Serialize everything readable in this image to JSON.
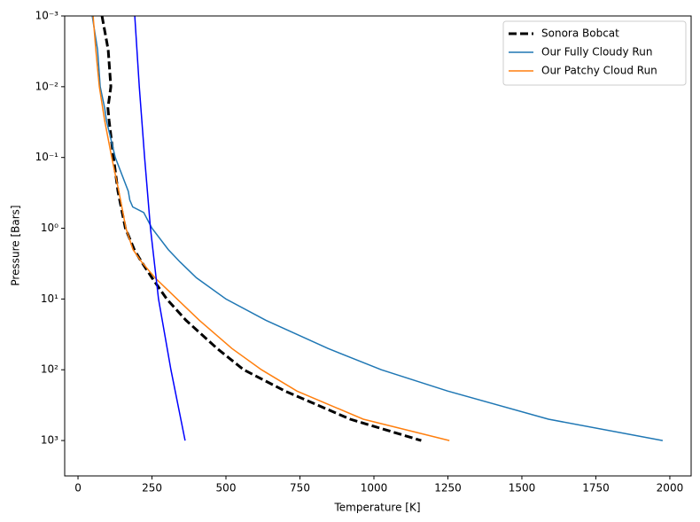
{
  "chart_data": {
    "type": "line",
    "x_label": "Temperature [K]",
    "y_label": "Pressure [Bars]",
    "xlim": [
      -45,
      2072
    ],
    "xticks": [
      0,
      250,
      500,
      750,
      1000,
      1250,
      1500,
      1750,
      2000
    ],
    "ylim": [
      3162,
      0.001
    ],
    "y_log": true,
    "yticks": [
      {
        "value": 0.001,
        "label": "10⁻³"
      },
      {
        "value": 0.01,
        "label": "10⁻²"
      },
      {
        "value": 0.1,
        "label": "10⁻¹"
      },
      {
        "value": 1,
        "label": "10⁰"
      },
      {
        "value": 10,
        "label": "10¹"
      },
      {
        "value": 100,
        "label": "10²"
      },
      {
        "value": 1000,
        "label": "10³"
      }
    ],
    "legend": "upper right",
    "series": [
      {
        "name": "Sonora Bobcat",
        "color": "#000000",
        "dashed": true,
        "width": 3,
        "x": [
          81,
          102,
          111,
          101,
          105,
          120,
          135,
          160,
          190,
          215,
          250,
          300,
          365,
          470,
          560,
          700,
          920,
          1160
        ],
        "values": [
          0.001,
          0.003,
          0.01,
          0.02,
          0.03,
          0.1,
          0.3,
          1,
          2,
          3,
          5,
          10,
          20,
          50,
          100,
          200,
          500,
          1000
        ]
      },
      {
        "name": "Our Fully Cloudy Run",
        "color": "#1f77b4",
        "width": 1.5,
        "x": [
          48,
          66,
          75,
          90,
          96,
          126,
          170,
          175,
          185,
          222,
          250,
          305,
          345,
          400,
          500,
          635,
          845,
          1025,
          1250,
          1590,
          1976
        ],
        "values": [
          0.001,
          0.003,
          0.01,
          0.02,
          0.03,
          0.1,
          0.3,
          0.4,
          0.5,
          0.6,
          1,
          2,
          3,
          5,
          10,
          20,
          50,
          100,
          200,
          500,
          1000
        ]
      },
      {
        "name": "Our Patchy Cloud Run",
        "color": "#ff7f0e",
        "width": 1.5,
        "x": [
          51,
          60,
          72,
          90,
          114,
          138,
          162,
          186,
          215,
          260,
          335,
          410,
          520,
          620,
          740,
          964,
          1255
        ],
        "values": [
          0.001,
          0.003,
          0.01,
          0.03,
          0.1,
          0.3,
          1,
          2,
          3,
          5,
          10,
          20,
          50,
          100,
          200,
          500,
          1000
        ]
      },
      {
        "color": "#0000ff",
        "width": 1.5,
        "x": [
          192,
          207,
          225,
          245,
          272,
          314,
          362
        ],
        "values": [
          0.001,
          0.01,
          0.1,
          1,
          10,
          100,
          1000
        ]
      }
    ]
  }
}
